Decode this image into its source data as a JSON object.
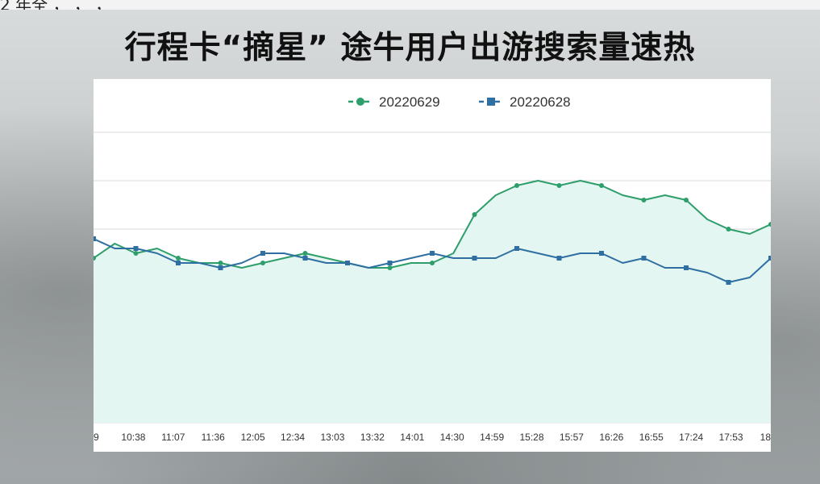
{
  "top_text": "  2  年全  ，  ，  ，              ",
  "title": "行程卡“摘星” 途牛用户出游搜索量速热",
  "chart_data": {
    "type": "line",
    "title": "",
    "xlabel": "",
    "ylabel": "",
    "x_ticks": [
      "9",
      "10:38",
      "11:07",
      "11:36",
      "12:05",
      "12:34",
      "13:03",
      "13:32",
      "14:01",
      "14:30",
      "14:59",
      "15:28",
      "15:57",
      "16:26",
      "16:55",
      "17:24",
      "17:53",
      "18"
    ],
    "ylim": [
      0,
      6
    ],
    "grid": "horizontal",
    "legend_position": "top-center",
    "series": [
      {
        "name": "20220629",
        "color": "#2e9e6b",
        "marker": "circle",
        "fill": "#e4f6f2",
        "values": [
          3.4,
          3.7,
          3.5,
          3.6,
          3.4,
          3.3,
          3.3,
          3.2,
          3.3,
          3.4,
          3.5,
          3.4,
          3.3,
          3.2,
          3.2,
          3.3,
          3.3,
          3.5,
          4.3,
          4.7,
          4.9,
          5.0,
          4.9,
          5.0,
          4.9,
          4.7,
          4.6,
          4.7,
          4.6,
          4.2,
          4.0,
          3.9,
          4.1
        ]
      },
      {
        "name": "20220628",
        "color": "#2f6fa1",
        "marker": "square",
        "fill": "",
        "values": [
          3.8,
          3.6,
          3.6,
          3.5,
          3.3,
          3.3,
          3.2,
          3.3,
          3.5,
          3.5,
          3.4,
          3.3,
          3.3,
          3.2,
          3.3,
          3.4,
          3.5,
          3.4,
          3.4,
          3.4,
          3.6,
          3.5,
          3.4,
          3.5,
          3.5,
          3.3,
          3.4,
          3.2,
          3.2,
          3.1,
          2.9,
          3.0,
          3.4
        ]
      }
    ]
  }
}
